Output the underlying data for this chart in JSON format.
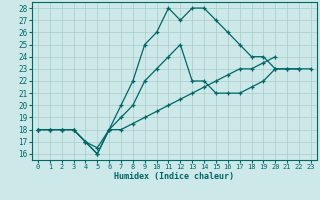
{
  "xlabel": "Humidex (Indice chaleur)",
  "bg_color": "#cde8e8",
  "line_color": "#006666",
  "grid_color": "#aacccc",
  "xlim": [
    -0.5,
    23.5
  ],
  "ylim": [
    15.5,
    28.5
  ],
  "xticks": [
    0,
    1,
    2,
    3,
    4,
    5,
    6,
    7,
    8,
    9,
    10,
    11,
    12,
    13,
    14,
    15,
    16,
    17,
    18,
    19,
    20,
    21,
    22,
    23
  ],
  "yticks": [
    16,
    17,
    18,
    19,
    20,
    21,
    22,
    23,
    24,
    25,
    26,
    27,
    28
  ],
  "lines": [
    {
      "x": [
        0,
        1,
        2,
        3,
        4,
        5,
        6,
        7,
        8,
        9,
        10,
        11,
        12,
        13,
        14,
        15,
        16,
        17,
        18,
        19,
        20,
        21,
        22
      ],
      "y": [
        18,
        18,
        18,
        18,
        17,
        16,
        18,
        20,
        22,
        25,
        26,
        28,
        27,
        28,
        28,
        27,
        26,
        25,
        24,
        24,
        23,
        23,
        23
      ]
    },
    {
      "x": [
        0,
        1,
        2,
        3,
        4,
        5,
        6,
        7,
        8,
        9,
        10,
        11,
        12,
        13,
        14,
        15,
        16,
        17,
        18,
        19,
        20,
        21,
        22,
        23
      ],
      "y": [
        18,
        18,
        18,
        18,
        17,
        16.5,
        18,
        19,
        20,
        22,
        23,
        24,
        25,
        22,
        22,
        21,
        21,
        21,
        21.5,
        22,
        23,
        23,
        23,
        23
      ]
    },
    {
      "x": [
        0,
        1,
        2,
        3,
        4,
        5,
        6,
        7,
        8,
        9,
        10,
        11,
        12,
        13,
        14,
        15,
        16,
        17,
        18,
        19,
        20
      ],
      "y": [
        18,
        18,
        18,
        18,
        17,
        16,
        18,
        18,
        18.5,
        19,
        19.5,
        20,
        20.5,
        21,
        21.5,
        22,
        22.5,
        23,
        23,
        23.5,
        24
      ]
    }
  ]
}
